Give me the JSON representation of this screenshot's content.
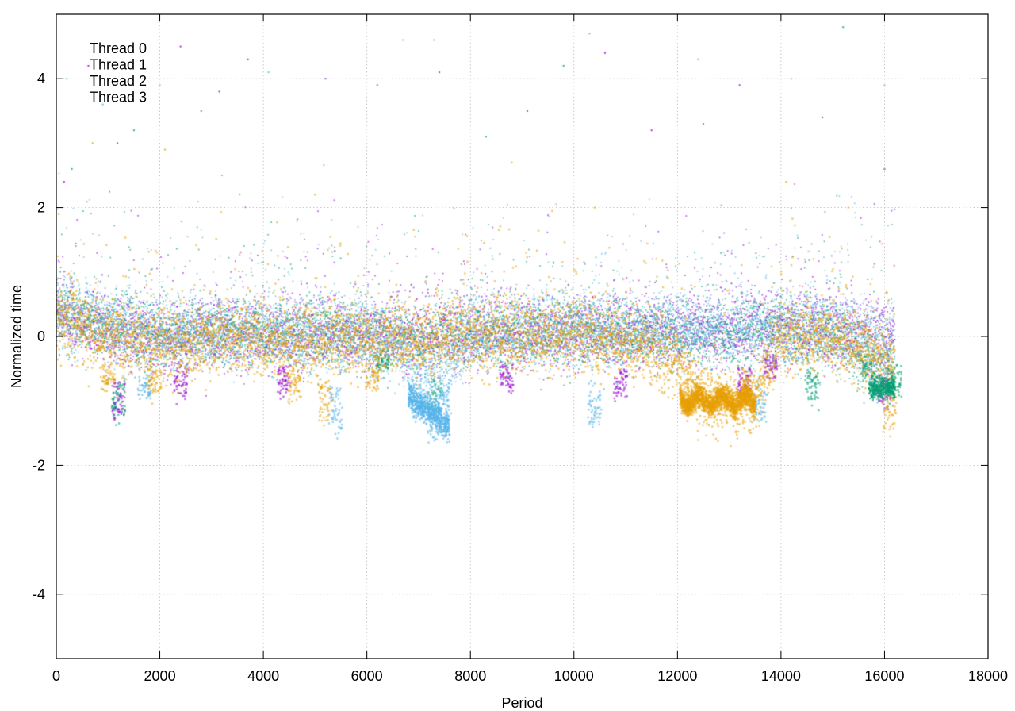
{
  "chart_data": {
    "type": "scatter",
    "title": "",
    "xlabel": "Period",
    "ylabel": "Normalized time",
    "xlim": [
      0,
      18000
    ],
    "ylim": [
      -5,
      5
    ],
    "x_ticks": [
      0,
      2000,
      4000,
      6000,
      8000,
      10000,
      12000,
      14000,
      16000,
      18000
    ],
    "x_tick_labels": [
      "0",
      "2000",
      "4000",
      "6000",
      "8000",
      "10000",
      "12000",
      "14000",
      "16000",
      "18000"
    ],
    "y_ticks": [
      -4,
      -2,
      0,
      2,
      4
    ],
    "y_tick_labels": [
      "-4",
      "-2",
      "0",
      "2",
      "4"
    ],
    "grid": true,
    "legend_position": "top-left",
    "series": [
      {
        "name": "Thread 0",
        "color": "#9400d3",
        "x_range": [
          0,
          16200
        ],
        "baseline": [
          [
            0,
            0.35
          ],
          [
            1000,
            0.1
          ],
          [
            2000,
            -0.05
          ],
          [
            3000,
            0.05
          ],
          [
            4000,
            0.0
          ],
          [
            5000,
            0.05
          ],
          [
            6000,
            0.05
          ],
          [
            7000,
            0.0
          ],
          [
            8000,
            0.05
          ],
          [
            9000,
            0.05
          ],
          [
            10000,
            0.1
          ],
          [
            11000,
            0.05
          ],
          [
            12000,
            0.1
          ],
          [
            13000,
            0.1
          ],
          [
            14000,
            0.15
          ],
          [
            15000,
            0.1
          ],
          [
            16000,
            0.0
          ],
          [
            16200,
            0.0
          ]
        ],
        "outliers": [
          [
            150,
            2.4
          ],
          [
            620,
            4.2
          ],
          [
            1180,
            3.0
          ],
          [
            2400,
            4.5
          ],
          [
            3150,
            3.8
          ],
          [
            3700,
            4.3
          ],
          [
            5200,
            4.0
          ],
          [
            7400,
            4.1
          ],
          [
            9100,
            3.5
          ],
          [
            10600,
            4.4
          ],
          [
            11500,
            3.2
          ],
          [
            13200,
            3.9
          ],
          [
            14800,
            3.4
          ],
          [
            16000,
            2.6
          ]
        ],
        "dips": [
          [
            1200,
            -1.3
          ],
          [
            2400,
            -0.9
          ],
          [
            4400,
            -0.9
          ],
          [
            8700,
            -0.8
          ],
          [
            10900,
            -0.9
          ],
          [
            13300,
            -0.9
          ],
          [
            13800,
            -0.6
          ],
          [
            16000,
            -1.1
          ]
        ]
      },
      {
        "name": "Thread 1",
        "color": "#009e73",
        "x_range": [
          0,
          16200
        ],
        "baseline": [
          [
            0,
            0.4
          ],
          [
            1000,
            0.15
          ],
          [
            2000,
            0.0
          ],
          [
            3000,
            0.05
          ],
          [
            4000,
            0.05
          ],
          [
            5000,
            0.05
          ],
          [
            6000,
            0.0
          ],
          [
            7000,
            -0.1
          ],
          [
            8000,
            0.05
          ],
          [
            9000,
            0.05
          ],
          [
            10000,
            0.1
          ],
          [
            11000,
            0.05
          ],
          [
            12000,
            0.05
          ],
          [
            13000,
            0.05
          ],
          [
            14000,
            0.1
          ],
          [
            15000,
            0.05
          ],
          [
            15800,
            -0.4
          ],
          [
            16200,
            -0.5
          ]
        ],
        "outliers": [
          [
            300,
            2.6
          ],
          [
            1500,
            3.2
          ],
          [
            2800,
            3.5
          ],
          [
            6200,
            3.9
          ],
          [
            8300,
            3.1
          ],
          [
            9800,
            4.2
          ],
          [
            12500,
            3.3
          ],
          [
            15200,
            4.8
          ]
        ],
        "dips": [
          [
            1200,
            -1.3
          ],
          [
            6300,
            -0.5
          ],
          [
            7300,
            -1.2
          ],
          [
            14600,
            -1.0
          ],
          [
            15700,
            -0.6
          ],
          [
            16200,
            -0.9
          ]
        ]
      },
      {
        "name": "Thread 2",
        "color": "#56b4e9",
        "x_range": [
          0,
          16200
        ],
        "baseline": [
          [
            0,
            0.45
          ],
          [
            1000,
            0.2
          ],
          [
            2000,
            0.05
          ],
          [
            3000,
            0.1
          ],
          [
            4000,
            0.1
          ],
          [
            5000,
            0.05
          ],
          [
            6000,
            0.05
          ],
          [
            6800,
            -0.3
          ],
          [
            7500,
            -0.6
          ],
          [
            8000,
            0.1
          ],
          [
            9000,
            0.1
          ],
          [
            10000,
            0.15
          ],
          [
            11000,
            0.1
          ],
          [
            12000,
            0.1
          ],
          [
            13000,
            0.1
          ],
          [
            14000,
            0.15
          ],
          [
            15000,
            0.1
          ],
          [
            16000,
            0.0
          ],
          [
            16200,
            0.0
          ]
        ],
        "outliers": [
          [
            200,
            4.0
          ],
          [
            900,
            3.6
          ],
          [
            2000,
            3.9
          ],
          [
            4100,
            4.1
          ],
          [
            6700,
            4.6
          ],
          [
            7300,
            4.6
          ],
          [
            10300,
            4.7
          ],
          [
            12400,
            4.3
          ],
          [
            14200,
            4.0
          ],
          [
            16000,
            3.9
          ]
        ],
        "dips": [
          [
            1700,
            -1.0
          ],
          [
            5400,
            -1.5
          ],
          [
            7000,
            -1.3
          ],
          [
            7300,
            -1.6
          ],
          [
            7500,
            -1.3
          ],
          [
            10400,
            -1.4
          ],
          [
            13600,
            -1.3
          ]
        ]
      },
      {
        "name": "Thread 3",
        "color": "#e69f00",
        "x_range": [
          0,
          16200
        ],
        "baseline": [
          [
            0,
            0.3
          ],
          [
            1000,
            0.0
          ],
          [
            2000,
            -0.15
          ],
          [
            3000,
            -0.05
          ],
          [
            4000,
            -0.05
          ],
          [
            5000,
            -0.1
          ],
          [
            6000,
            -0.05
          ],
          [
            7000,
            -0.05
          ],
          [
            8000,
            0.0
          ],
          [
            9000,
            0.0
          ],
          [
            10000,
            0.0
          ],
          [
            11000,
            -0.05
          ],
          [
            12000,
            -0.4
          ],
          [
            12500,
            -1.0
          ],
          [
            13000,
            -1.0
          ],
          [
            13500,
            -1.0
          ],
          [
            14000,
            0.0
          ],
          [
            15000,
            0.0
          ],
          [
            16000,
            -0.3
          ],
          [
            16200,
            -0.5
          ]
        ],
        "outliers": [
          [
            50,
            1.9
          ],
          [
            700,
            3.0
          ],
          [
            2100,
            2.9
          ],
          [
            3200,
            2.5
          ],
          [
            5000,
            2.2
          ],
          [
            8800,
            2.7
          ],
          [
            10400,
            2.0
          ],
          [
            14100,
            2.4
          ],
          [
            15300,
            2.0
          ]
        ],
        "dips": [
          [
            1000,
            -0.8
          ],
          [
            1900,
            -0.9
          ],
          [
            4600,
            -1.0
          ],
          [
            5200,
            -1.3
          ],
          [
            6100,
            -0.8
          ],
          [
            12300,
            -1.2
          ],
          [
            13400,
            -1.1
          ],
          [
            16100,
            -1.5
          ]
        ]
      }
    ]
  }
}
